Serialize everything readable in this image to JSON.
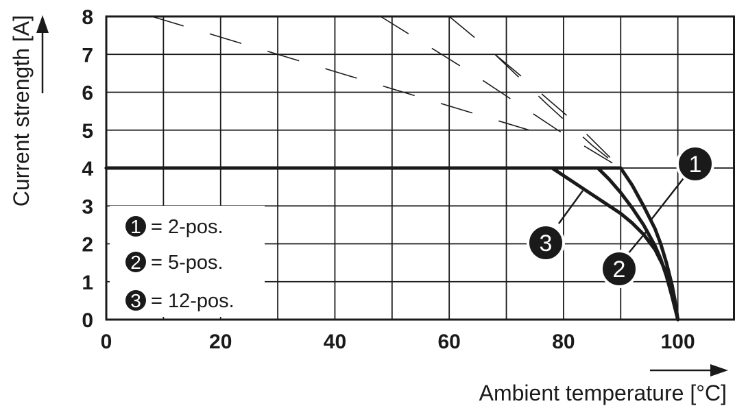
{
  "chart_data": {
    "type": "line",
    "xlabel": "Ambient temperature [°C]",
    "ylabel": "Current strength [A]",
    "xlim": [
      0,
      110
    ],
    "ylim": [
      0,
      8
    ],
    "x_ticks": [
      "0",
      "20",
      "40",
      "60",
      "80",
      "100"
    ],
    "y_ticks": [
      "0",
      "1",
      "2",
      "3",
      "4",
      "5",
      "6",
      "7",
      "8"
    ],
    "grid": true,
    "legend": {
      "placement": "bottom-left",
      "entries": [
        {
          "marker": "1",
          "text": "= 2-pos."
        },
        {
          "marker": "2",
          "text": "= 5-pos."
        },
        {
          "marker": "3",
          "text": "= 12-pos."
        }
      ]
    },
    "series": [
      {
        "marker": "1",
        "x": [
          0,
          90,
          92,
          94,
          96,
          97,
          98,
          99,
          99.5,
          100
        ],
        "y": [
          4,
          4,
          3.55,
          3.0,
          2.4,
          2.0,
          1.5,
          0.9,
          0.5,
          0
        ]
      },
      {
        "marker": "2",
        "x": [
          0,
          86,
          88,
          90,
          92,
          94,
          96,
          97,
          98,
          99,
          100
        ],
        "y": [
          4,
          4,
          3.7,
          3.35,
          2.95,
          2.5,
          1.95,
          1.6,
          1.15,
          0.6,
          0
        ]
      },
      {
        "marker": "3",
        "x": [
          0,
          78,
          80,
          82,
          84,
          86,
          88,
          90,
          92,
          94,
          96,
          98,
          99,
          100
        ],
        "y": [
          4,
          4,
          3.8,
          3.6,
          3.4,
          3.2,
          3.0,
          2.8,
          2.55,
          2.25,
          1.85,
          1.25,
          0.8,
          0
        ]
      }
    ],
    "dashed_extensions": [
      {
        "x": [
          8,
          30,
          52,
          74
        ],
        "y": [
          8,
          7,
          6,
          5
        ]
      },
      {
        "x": [
          48,
          64,
          79,
          90
        ],
        "y": [
          8,
          6.5,
          5,
          4
        ]
      },
      {
        "x": [
          60,
          72,
          82,
          90
        ],
        "y": [
          8,
          6.5,
          5.2,
          4
        ]
      },
      {
        "x": [
          68,
          77,
          85,
          90
        ],
        "y": [
          7,
          5.7,
          4.6,
          4
        ]
      }
    ]
  }
}
